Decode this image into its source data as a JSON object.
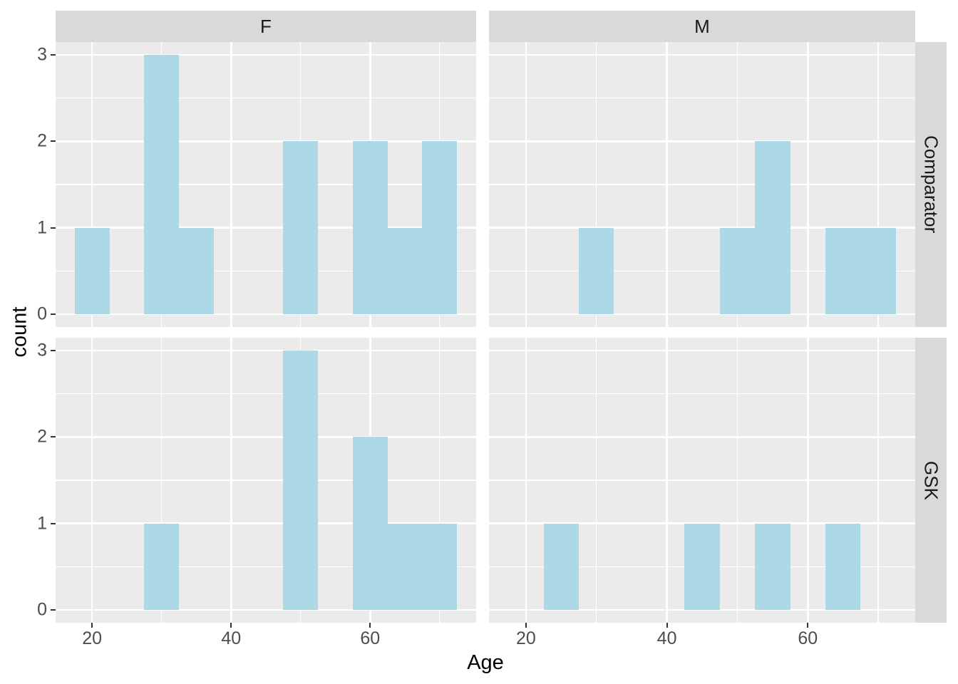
{
  "chart_data": {
    "type": "bar",
    "subtype": "faceted-histogram",
    "title": "",
    "xlabel": "Age",
    "ylabel": "count",
    "facet_cols": [
      "F",
      "M"
    ],
    "facet_rows": [
      "Comparator",
      "GSK"
    ],
    "x_ticks": [
      20,
      40,
      60
    ],
    "y_ticks": [
      0,
      1,
      2,
      3
    ],
    "x_minor_breaks": [
      30,
      50,
      70
    ],
    "y_minor_breaks": [
      0.5,
      1.5,
      2.5
    ],
    "xlim": [
      14.75,
      75.25
    ],
    "ylim": [
      -0.15,
      3.15
    ],
    "binwidth": 5,
    "grid": true,
    "legend": "none",
    "panels": [
      {
        "row": "Comparator",
        "col": "F",
        "bins": [
          {
            "center": 20,
            "count": 1
          },
          {
            "center": 30,
            "count": 3
          },
          {
            "center": 35,
            "count": 1
          },
          {
            "center": 50,
            "count": 2
          },
          {
            "center": 60,
            "count": 2
          },
          {
            "center": 65,
            "count": 1
          },
          {
            "center": 70,
            "count": 2
          }
        ]
      },
      {
        "row": "Comparator",
        "col": "M",
        "bins": [
          {
            "center": 30,
            "count": 1
          },
          {
            "center": 50,
            "count": 1
          },
          {
            "center": 55,
            "count": 2
          },
          {
            "center": 65,
            "count": 1
          },
          {
            "center": 70,
            "count": 1
          }
        ]
      },
      {
        "row": "GSK",
        "col": "F",
        "bins": [
          {
            "center": 30,
            "count": 1
          },
          {
            "center": 50,
            "count": 3
          },
          {
            "center": 60,
            "count": 2
          },
          {
            "center": 65,
            "count": 1
          },
          {
            "center": 70,
            "count": 1
          }
        ]
      },
      {
        "row": "GSK",
        "col": "M",
        "bins": [
          {
            "center": 25,
            "count": 1
          },
          {
            "center": 45,
            "count": 1
          },
          {
            "center": 55,
            "count": 1
          },
          {
            "center": 65,
            "count": 1
          }
        ]
      }
    ],
    "colors": {
      "bar_fill": "#ADD8E6",
      "panel_bg": "#EBEBEB",
      "strip_bg": "#D9D9D9",
      "grid": "#FFFFFF",
      "axis_text": "#4D4D4D",
      "strip_text": "#1A1A1A",
      "tick_mark": "#333333",
      "title_text": "#000000"
    }
  }
}
